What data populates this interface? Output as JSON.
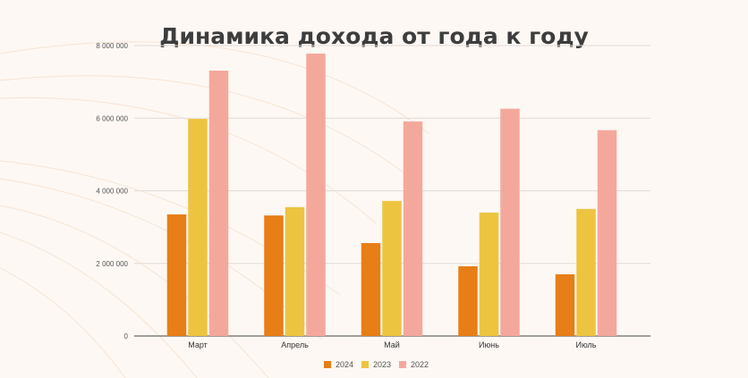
{
  "chart_data": {
    "type": "bar",
    "title": "Динамика дохода от года к году",
    "xlabel": "",
    "ylabel": "",
    "categories": [
      "Март",
      "Апрель",
      "Май",
      "Июнь",
      "Июль"
    ],
    "series": [
      {
        "name": "2024",
        "color": "#e87e16",
        "values": [
          3350000,
          3320000,
          2560000,
          1920000,
          1700000
        ]
      },
      {
        "name": "2023",
        "color": "#ecc440",
        "values": [
          5980000,
          3550000,
          3720000,
          3400000,
          3500000
        ]
      },
      {
        "name": "2022",
        "color": "#f4a89c",
        "values": [
          7310000,
          7780000,
          5910000,
          6260000,
          5670000
        ]
      }
    ],
    "ylim": [
      0,
      8000000
    ],
    "yticks": [
      0,
      2000000,
      4000000,
      6000000,
      8000000
    ],
    "ytick_labels": [
      "0",
      "2 000 000",
      "4 000 000",
      "6 000 000",
      "8 000 000"
    ],
    "grid": true,
    "legend": "bottom"
  }
}
